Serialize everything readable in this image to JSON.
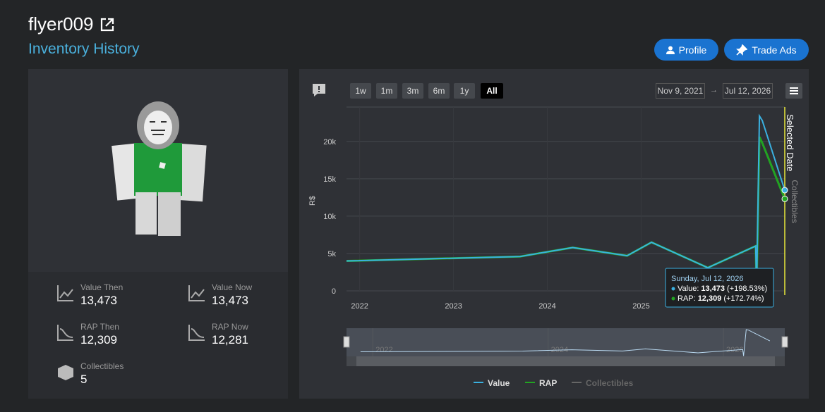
{
  "header": {
    "username": "flyer009",
    "subtitle": "Inventory History",
    "buttons": [
      "Profile",
      "Trade Ads"
    ]
  },
  "stats": [
    {
      "label": "Value Then",
      "value": "13,473"
    },
    {
      "label": "Value Now",
      "value": "13,473"
    },
    {
      "label": "RAP Then",
      "value": "12,309"
    },
    {
      "label": "RAP Now",
      "value": "12,281"
    },
    {
      "label": "Collectibles",
      "value": "5"
    }
  ],
  "controls": {
    "ranges": [
      "1w",
      "1m",
      "3m",
      "6m",
      "1y",
      "All"
    ],
    "selected_range": 5,
    "from": "Nov 9, 2021",
    "arrow": "→",
    "to": "Jul 12, 2026"
  },
  "chart_data": {
    "type": "line",
    "y_label": "R$",
    "y2_label": "Collectibles",
    "annotation": "Selected Date",
    "xlim": [
      2021.86,
      2026.53
    ],
    "xticks": [
      2022,
      2023,
      2024,
      2025
    ],
    "ylim": [
      0,
      24600
    ],
    "yticks": [
      0,
      {
        "value": 5000,
        "label": "5k"
      },
      {
        "value": 10000,
        "label": "10k"
      },
      {
        "value": 15000,
        "label": "15k"
      },
      {
        "value": 20000,
        "label": "20k"
      }
    ],
    "grid": true,
    "x": [
      2021.86,
      2023.71,
      2024.27,
      2024.85,
      2025.11,
      2025.71,
      2026.22,
      2026.23,
      2026.26,
      2026.29,
      2026.53
    ],
    "series": [
      {
        "name": "Value",
        "color": "#3ab0e0",
        "values": [
          4000,
          4600,
          5800,
          4700,
          6500,
          3100,
          6000,
          300,
          23400,
          22800,
          13473
        ]
      },
      {
        "name": "RAP",
        "color": "#22a322",
        "values": [
          4000,
          4600,
          5800,
          4700,
          6500,
          3100,
          6000,
          300,
          20600,
          19800,
          12309
        ]
      }
    ],
    "legend_disabled": "Collectibles",
    "tooltip": {
      "date": "Sunday, Jul 12, 2026",
      "lines": [
        {
          "name": "Value:",
          "value": "13,473",
          "change": "(+198.53%)"
        },
        {
          "name": "RAP:",
          "value": "12,309",
          "change": "(+172.74%)"
        }
      ]
    },
    "navigator": {
      "xlim": [
        2021.7,
        2026.7
      ],
      "xticks": [
        2022,
        2024,
        2026
      ]
    }
  }
}
